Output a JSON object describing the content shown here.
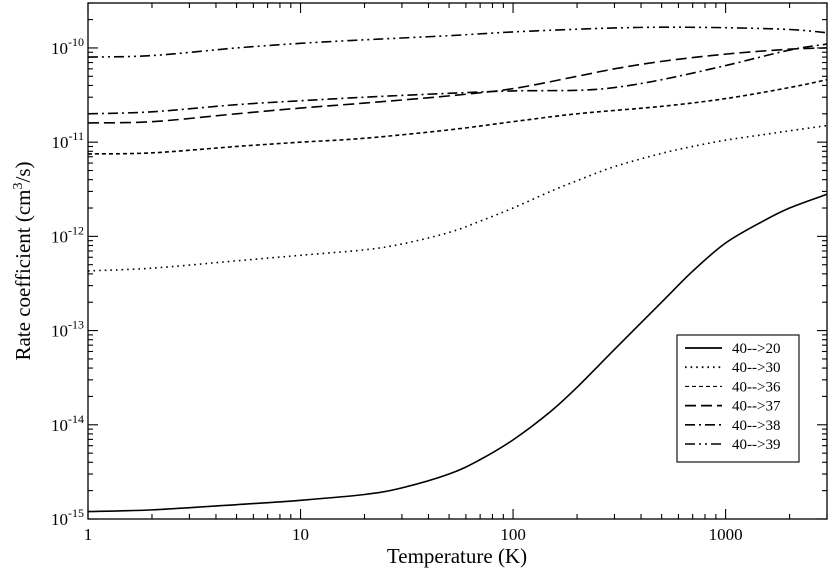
{
  "chart_data": {
    "type": "line",
    "xlabel": "Temperature (K)",
    "ylabel_main": "Rate coefficient (cm",
    "ylabel_sup": "3",
    "ylabel_tail": "/s)",
    "x_scale": "log",
    "y_scale": "log",
    "xlim": [
      1,
      3000
    ],
    "ylim": [
      1e-15,
      3e-10
    ],
    "grid": false,
    "legend_position": "bottom-right",
    "x_ticks": [
      {
        "value": 1,
        "label": "1"
      },
      {
        "value": 10,
        "label": "10"
      },
      {
        "value": 100,
        "label": "100"
      },
      {
        "value": 1000,
        "label": "1000"
      }
    ],
    "y_ticks": [
      {
        "value": 1e-15,
        "base": "10",
        "exp": "-15"
      },
      {
        "value": 1e-14,
        "base": "10",
        "exp": "-14"
      },
      {
        "value": 1e-13,
        "base": "10",
        "exp": "-13"
      },
      {
        "value": 1e-12,
        "base": "10",
        "exp": "-12"
      },
      {
        "value": 1e-11,
        "base": "10",
        "exp": "-11"
      },
      {
        "value": 1e-10,
        "base": "10",
        "exp": "-10"
      }
    ],
    "series": [
      {
        "name": "40-->20",
        "style": "solid",
        "x": [
          1,
          2,
          5,
          10,
          20,
          30,
          50,
          70,
          100,
          150,
          200,
          300,
          500,
          700,
          1000,
          1500,
          2000,
          3000
        ],
        "y": [
          1.2e-15,
          1.25e-15,
          1.42e-15,
          1.58e-15,
          1.82e-15,
          2.14e-15,
          3e-15,
          4.27e-15,
          6.92e-15,
          1.38e-14,
          2.5e-14,
          6.3e-14,
          2e-13,
          4.27e-13,
          8.5e-13,
          1.45e-12,
          2e-12,
          2.8e-12
        ]
      },
      {
        "name": "40-->30",
        "style": "dotted",
        "x": [
          1,
          2,
          5,
          10,
          20,
          30,
          50,
          70,
          100,
          150,
          200,
          300,
          500,
          700,
          1000,
          1500,
          2000,
          3000
        ],
        "y": [
          4.3e-13,
          4.6e-13,
          5.5e-13,
          6.3e-13,
          7.2e-13,
          8.3e-13,
          1.1e-12,
          1.45e-12,
          2e-12,
          3e-12,
          3.9e-12,
          5.5e-12,
          7.6e-12,
          9e-12,
          1.05e-11,
          1.2e-11,
          1.32e-11,
          1.5e-11
        ]
      },
      {
        "name": "40-->36",
        "style": "dashed",
        "x": [
          1,
          2,
          5,
          10,
          20,
          50,
          100,
          200,
          500,
          1000,
          2000,
          3000
        ],
        "y": [
          7.5e-12,
          7.7e-12,
          9e-12,
          1e-11,
          1.1e-11,
          1.35e-11,
          1.65e-11,
          2e-11,
          2.4e-11,
          2.9e-11,
          3.8e-11,
          4.6e-11
        ]
      },
      {
        "name": "40-->37",
        "style": "long-dash",
        "x": [
          1,
          2,
          5,
          10,
          20,
          50,
          100,
          200,
          300,
          500,
          1000,
          2000,
          3000
        ],
        "y": [
          1.6e-11,
          1.65e-11,
          2e-11,
          2.3e-11,
          2.6e-11,
          3.1e-11,
          3.7e-11,
          5e-11,
          6e-11,
          7.2e-11,
          8.6e-11,
          9.7e-11,
          1e-10
        ]
      },
      {
        "name": "40-->38",
        "style": "dash-dot",
        "x": [
          1,
          2,
          5,
          10,
          20,
          50,
          100,
          200,
          300,
          500,
          1000,
          2000,
          3000
        ],
        "y": [
          2e-11,
          2.1e-11,
          2.5e-11,
          2.75e-11,
          3e-11,
          3.3e-11,
          3.5e-11,
          3.55e-11,
          3.8e-11,
          4.6e-11,
          6.5e-11,
          9.5e-11,
          1.1e-10
        ]
      },
      {
        "name": "40-->39",
        "style": "dash-dot-dot",
        "x": [
          1,
          2,
          5,
          10,
          20,
          50,
          100,
          200,
          300,
          500,
          1000,
          2000,
          3000
        ],
        "y": [
          8e-11,
          8.3e-11,
          1e-10,
          1.12e-10,
          1.22e-10,
          1.35e-10,
          1.48e-10,
          1.58e-10,
          1.63e-10,
          1.66e-10,
          1.64e-10,
          1.57e-10,
          1.45e-10
        ]
      }
    ]
  }
}
